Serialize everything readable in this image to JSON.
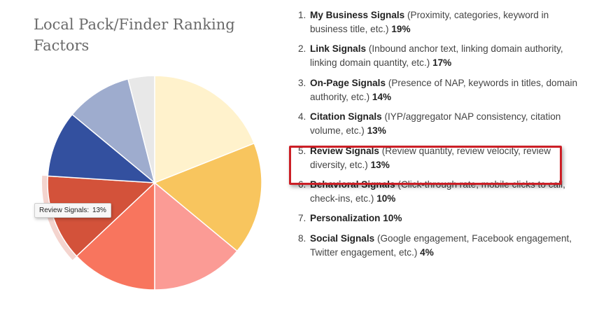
{
  "title_lines": [
    "Local Pack/Finder Ranking",
    "Factors"
  ],
  "tooltip": {
    "label": "Review Signals",
    "value": "13%"
  },
  "factors": [
    {
      "num": "1.",
      "name": "My Business Signals",
      "desc": "(Proximity, categories, keyword in business title, etc.)",
      "pct": "19%"
    },
    {
      "num": "2.",
      "name": "Link Signals",
      "desc": "(Inbound anchor text, linking domain authority, linking domain quantity, etc.)",
      "pct": "17%"
    },
    {
      "num": "3.",
      "name": "On-Page Signals",
      "desc": "(Presence of NAP, keywords in titles, domain authority, etc.)",
      "pct": "14%"
    },
    {
      "num": "4.",
      "name": "Citation Signals",
      "desc": "(IYP/aggregator NAP consistency, citation volume, etc.)",
      "pct": "13%"
    },
    {
      "num": "5.",
      "name": "Review Signals",
      "desc": "(Review quantity, review velocity, review diversity, etc.)",
      "pct": "13%"
    },
    {
      "num": "6.",
      "name": "Behavioral Signals",
      "desc": "(Click-through rate, mobile clicks to call, check-ins, etc.)",
      "pct": "10%"
    },
    {
      "num": "7.",
      "name": "Personalization",
      "desc": "",
      "pct": "10%"
    },
    {
      "num": "8.",
      "name": "Social Signals",
      "desc": "(Google engagement, Facebook engagement, Twitter engagement, etc.)",
      "pct": "4%"
    }
  ],
  "chart_data": {
    "type": "pie",
    "title": "Local Pack/Finder Ranking Factors",
    "categories": [
      "My Business Signals",
      "Link Signals",
      "On-Page Signals",
      "Citation Signals",
      "Review Signals",
      "Behavioral Signals",
      "Personalization",
      "Social Signals"
    ],
    "values": [
      19,
      17,
      14,
      13,
      13,
      10,
      10,
      4
    ],
    "colors": [
      "#fff2cc",
      "#f8c55e",
      "#fb9b95",
      "#f8755e",
      "#d3523a",
      "#33509f",
      "#9eacce",
      "#e8e8e8"
    ],
    "highlighted": "Review Signals",
    "start_angle_deg": 0,
    "direction": "clockwise"
  }
}
